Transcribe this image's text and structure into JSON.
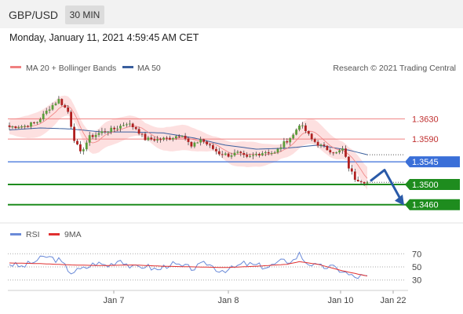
{
  "header": {
    "pair": "GBP/USD",
    "timeframe": "30 MIN"
  },
  "datetime": "Monday, January 11, 2021 4:59:45 AM CET",
  "legend": {
    "bollinger": "MA 20 + Bollinger Bands",
    "ma50": "MA 50",
    "credit": "Research © 2021 Trading Central",
    "rsi": "RSI",
    "rsi_ma": "9MA"
  },
  "colors": {
    "bollinger": "#f08080",
    "band_fill": "#fde0e0",
    "ma50": "#3a5f9e",
    "bull": "#5a9e3a",
    "bear": "#b02020",
    "resistance": "#f08080",
    "pivot": "#3a6fd8",
    "support": "#1e8c1e",
    "arrow": "#2a5aa8",
    "rsi": "#6a8ad8",
    "rsi_ma": "#e03030"
  },
  "chart_data": [
    {
      "type": "candlestick",
      "xlabel": "",
      "ylabel": "",
      "x_ticks": [
        "Jan 7",
        "Jan 8",
        "Jan 10",
        "Jan 22"
      ],
      "ylim": [
        1.343,
        1.371
      ],
      "levels": [
        {
          "label": "1.3630",
          "value": 1.363,
          "kind": "resistance"
        },
        {
          "label": "1.3590",
          "value": 1.359,
          "kind": "resistance"
        },
        {
          "label": "1.3545",
          "value": 1.3545,
          "kind": "pivot"
        },
        {
          "label": "1.3500",
          "value": 1.35,
          "kind": "support"
        },
        {
          "label": "1.3460",
          "value": 1.346,
          "kind": "support"
        }
      ],
      "close_anchors": [
        [
          0,
          1.3614
        ],
        [
          5,
          1.3616
        ],
        [
          9,
          1.3624
        ],
        [
          13,
          1.3652
        ],
        [
          16,
          1.3668
        ],
        [
          19,
          1.3644
        ],
        [
          21,
          1.359
        ],
        [
          23,
          1.3562
        ],
        [
          26,
          1.3594
        ],
        [
          30,
          1.3604
        ],
        [
          34,
          1.361
        ],
        [
          38,
          1.3622
        ],
        [
          41,
          1.3611
        ],
        [
          44,
          1.359
        ],
        [
          48,
          1.3589
        ],
        [
          52,
          1.3592
        ],
        [
          56,
          1.36
        ],
        [
          59,
          1.3574
        ],
        [
          62,
          1.359
        ],
        [
          65,
          1.3575
        ],
        [
          68,
          1.3562
        ],
        [
          71,
          1.3558
        ],
        [
          74,
          1.3562
        ],
        [
          77,
          1.3552
        ],
        [
          80,
          1.356
        ],
        [
          83,
          1.3565
        ],
        [
          86,
          1.3562
        ],
        [
          89,
          1.3582
        ],
        [
          92,
          1.3598
        ],
        [
          94,
          1.362
        ],
        [
          96,
          1.3606
        ],
        [
          98,
          1.3589
        ],
        [
          100,
          1.358
        ],
        [
          103,
          1.357
        ],
        [
          106,
          1.3562
        ],
        [
          108,
          1.357
        ],
        [
          110,
          1.3534
        ],
        [
          112,
          1.3512
        ],
        [
          114,
          1.3508
        ],
        [
          116,
          1.3504
        ]
      ],
      "band_width": 0.0018,
      "ma50_anchors": [
        [
          0,
          1.3608
        ],
        [
          10,
          1.3612
        ],
        [
          20,
          1.361
        ],
        [
          30,
          1.3604
        ],
        [
          40,
          1.3604
        ],
        [
          50,
          1.3602
        ],
        [
          60,
          1.3592
        ],
        [
          70,
          1.3578
        ],
        [
          80,
          1.357
        ],
        [
          90,
          1.3572
        ],
        [
          100,
          1.3578
        ],
        [
          110,
          1.3568
        ],
        [
          116,
          1.3559
        ]
      ],
      "forecast": {
        "from_value": 1.351,
        "to_value": 1.346
      }
    },
    {
      "type": "line",
      "title": "RSI",
      "ylim": [
        20,
        80
      ],
      "y_ticks": [
        "70",
        "50",
        "30"
      ],
      "rsi_anchors": [
        [
          0,
          55
        ],
        [
          4,
          50
        ],
        [
          8,
          58
        ],
        [
          12,
          66
        ],
        [
          16,
          60
        ],
        [
          20,
          42
        ],
        [
          24,
          47
        ],
        [
          28,
          56
        ],
        [
          32,
          52
        ],
        [
          36,
          62
        ],
        [
          40,
          48
        ],
        [
          44,
          52
        ],
        [
          48,
          45
        ],
        [
          52,
          55
        ],
        [
          56,
          50
        ],
        [
          60,
          48
        ],
        [
          64,
          56
        ],
        [
          68,
          45
        ],
        [
          72,
          47
        ],
        [
          76,
          55
        ],
        [
          80,
          52
        ],
        [
          84,
          50
        ],
        [
          88,
          58
        ],
        [
          92,
          60
        ],
        [
          94,
          70
        ],
        [
          96,
          58
        ],
        [
          100,
          50
        ],
        [
          104,
          50
        ],
        [
          108,
          44
        ],
        [
          110,
          38
        ],
        [
          112,
          34
        ],
        [
          114,
          36
        ],
        [
          116,
          34
        ]
      ],
      "ma_anchors": [
        [
          0,
          56
        ],
        [
          10,
          55
        ],
        [
          20,
          53
        ],
        [
          30,
          52
        ],
        [
          40,
          53
        ],
        [
          50,
          51
        ],
        [
          60,
          50
        ],
        [
          70,
          49
        ],
        [
          80,
          51
        ],
        [
          90,
          54
        ],
        [
          94,
          58
        ],
        [
          100,
          54
        ],
        [
          108,
          44
        ],
        [
          116,
          36
        ]
      ]
    }
  ]
}
